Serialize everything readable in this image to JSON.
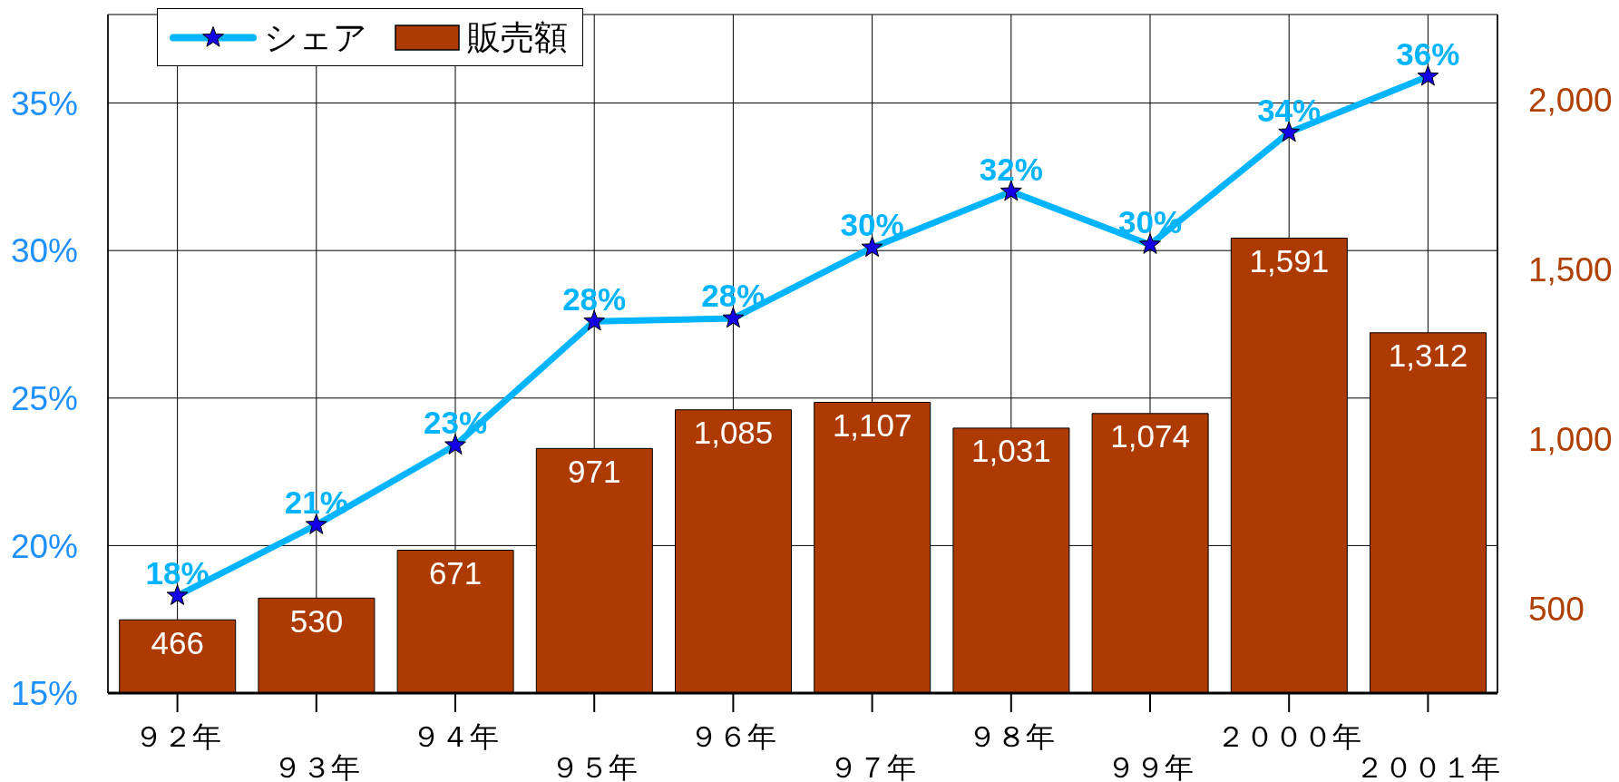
{
  "chart_data": {
    "type": "bar",
    "categories": [
      "９２年",
      "９３年",
      "９４年",
      "９５年",
      "９６年",
      "９７年",
      "９８年",
      "９９年",
      "２０００年",
      "２００１年"
    ],
    "series": [
      {
        "name": "シェア",
        "type": "line",
        "color": "#00b4ff",
        "values": [
          18.3,
          20.7,
          23.4,
          27.6,
          27.7,
          30.1,
          32.0,
          30.2,
          34.0,
          35.9
        ],
        "value_labels": [
          "18%",
          "21%",
          "23%",
          "28%",
          "28%",
          "30%",
          "32%",
          "30%",
          "34%",
          "36%"
        ]
      },
      {
        "name": "販売額",
        "axis": "y2",
        "color": "#ad3a00",
        "values": [
          466,
          530,
          671,
          971,
          1085,
          1107,
          1031,
          1074,
          1591,
          1312
        ],
        "value_labels": [
          "466",
          "530",
          "671",
          "971",
          "1,085",
          "1,107",
          "1,031",
          "1,074",
          "1,591",
          "1,312"
        ]
      }
    ],
    "ylim": [
      15,
      38
    ],
    "yticks": [
      {
        "value": 15,
        "label": "15%"
      },
      {
        "value": 20,
        "label": "20%"
      },
      {
        "value": 25,
        "label": "25%"
      },
      {
        "value": 30,
        "label": "30%"
      },
      {
        "value": 35,
        "label": "35%"
      }
    ],
    "y2lim": [
      250,
      2250
    ],
    "y2ticks": [
      500,
      {
        "value": 1000,
        "label": "1,000"
      },
      {
        "value": 1500,
        "label": "1,500"
      },
      {
        "value": 2000,
        "label": "2,000"
      }
    ],
    "grid": true,
    "legend": "top left",
    "marker": "star"
  }
}
